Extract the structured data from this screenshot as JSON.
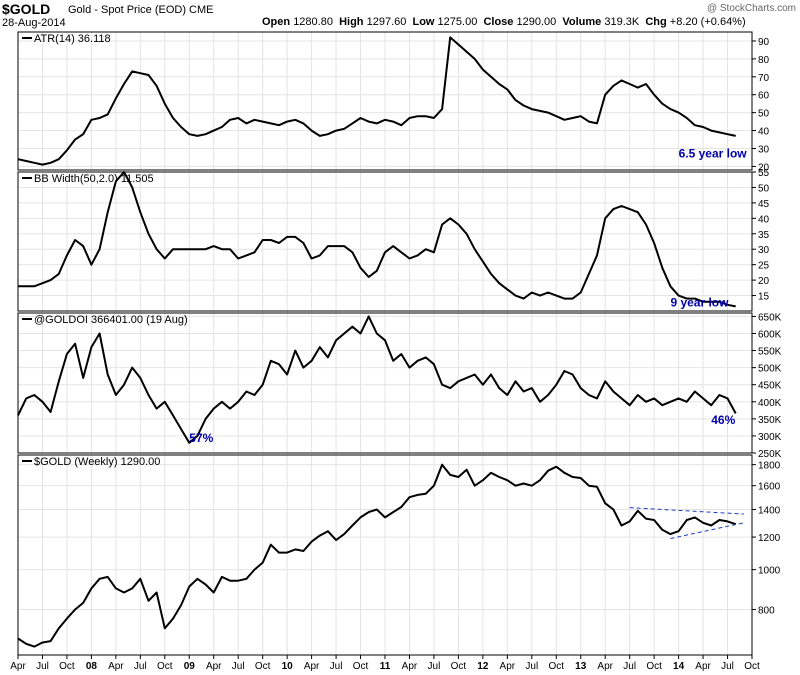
{
  "header": {
    "symbol": "$GOLD",
    "name": "Gold - Spot Price (EOD)",
    "exchange": "CME",
    "date": "28-Aug-2014",
    "open_label": "Open",
    "open": "1280.80",
    "high_label": "High",
    "high": "1297.60",
    "low_label": "Low",
    "low": "1275.00",
    "close_label": "Close",
    "close": "1290.00",
    "volume_label": "Volume",
    "volume": "319.3K",
    "chg_label": "Chg",
    "chg": "+8.20 (+0.64%)",
    "credit": "@ StockCharts.com"
  },
  "colors": {
    "line": "#000000",
    "annotation": "#0000aa",
    "trendline": "#1a3fb8",
    "grid": "#e4e4e4"
  },
  "x_axis": {
    "start": "2007-04",
    "end": "2014-10",
    "labels": [
      {
        "t": "2007-04",
        "text": "Apr",
        "bold": false
      },
      {
        "t": "2007-07",
        "text": "Jul",
        "bold": false
      },
      {
        "t": "2007-10",
        "text": "Oct",
        "bold": false
      },
      {
        "t": "2008-01",
        "text": "08",
        "bold": true
      },
      {
        "t": "2008-04",
        "text": "Apr",
        "bold": false
      },
      {
        "t": "2008-07",
        "text": "Jul",
        "bold": false
      },
      {
        "t": "2008-10",
        "text": "Oct",
        "bold": false
      },
      {
        "t": "2009-01",
        "text": "09",
        "bold": true
      },
      {
        "t": "2009-04",
        "text": "Apr",
        "bold": false
      },
      {
        "t": "2009-07",
        "text": "Jul",
        "bold": false
      },
      {
        "t": "2009-10",
        "text": "Oct",
        "bold": false
      },
      {
        "t": "2010-01",
        "text": "10",
        "bold": true
      },
      {
        "t": "2010-04",
        "text": "Apr",
        "bold": false
      },
      {
        "t": "2010-07",
        "text": "Jul",
        "bold": false
      },
      {
        "t": "2010-10",
        "text": "Oct",
        "bold": false
      },
      {
        "t": "2011-01",
        "text": "11",
        "bold": true
      },
      {
        "t": "2011-04",
        "text": "Apr",
        "bold": false
      },
      {
        "t": "2011-07",
        "text": "Jul",
        "bold": false
      },
      {
        "t": "2011-10",
        "text": "Oct",
        "bold": false
      },
      {
        "t": "2012-01",
        "text": "12",
        "bold": true
      },
      {
        "t": "2012-04",
        "text": "Apr",
        "bold": false
      },
      {
        "t": "2012-07",
        "text": "Jul",
        "bold": false
      },
      {
        "t": "2012-10",
        "text": "Oct",
        "bold": false
      },
      {
        "t": "2013-01",
        "text": "13",
        "bold": true
      },
      {
        "t": "2013-04",
        "text": "Apr",
        "bold": false
      },
      {
        "t": "2013-07",
        "text": "Jul",
        "bold": false
      },
      {
        "t": "2013-10",
        "text": "Oct",
        "bold": false
      },
      {
        "t": "2014-01",
        "text": "14",
        "bold": true
      },
      {
        "t": "2014-04",
        "text": "Apr",
        "bold": false
      },
      {
        "t": "2014-07",
        "text": "Jul",
        "bold": false
      },
      {
        "t": "2014-10",
        "text": "Oct",
        "bold": false
      }
    ]
  },
  "chart_data": [
    {
      "type": "line",
      "legend": "ATR(14) 36.118",
      "ylim": [
        18,
        95
      ],
      "yticks": [
        {
          "v": 20,
          "text": "20"
        },
        {
          "v": 30,
          "text": "30"
        },
        {
          "v": 40,
          "text": "40"
        },
        {
          "v": 50,
          "text": "50"
        },
        {
          "v": 60,
          "text": "60"
        },
        {
          "v": 70,
          "text": "70"
        },
        {
          "v": 80,
          "text": "80"
        },
        {
          "v": 90,
          "text": "90"
        }
      ],
      "x": [
        "2007-04",
        "2007-05",
        "2007-06",
        "2007-07",
        "2007-08",
        "2007-09",
        "2007-10",
        "2007-11",
        "2007-12",
        "2008-01",
        "2008-02",
        "2008-03",
        "2008-04",
        "2008-05",
        "2008-06",
        "2008-07",
        "2008-08",
        "2008-09",
        "2008-10",
        "2008-11",
        "2008-12",
        "2009-01",
        "2009-02",
        "2009-03",
        "2009-04",
        "2009-05",
        "2009-06",
        "2009-07",
        "2009-08",
        "2009-09",
        "2009-10",
        "2009-11",
        "2009-12",
        "2010-01",
        "2010-02",
        "2010-03",
        "2010-04",
        "2010-05",
        "2010-06",
        "2010-07",
        "2010-08",
        "2010-09",
        "2010-10",
        "2010-11",
        "2010-12",
        "2011-01",
        "2011-02",
        "2011-03",
        "2011-04",
        "2011-05",
        "2011-06",
        "2011-07",
        "2011-08",
        "2011-09",
        "2011-10",
        "2011-11",
        "2011-12",
        "2012-01",
        "2012-02",
        "2012-03",
        "2012-04",
        "2012-05",
        "2012-06",
        "2012-07",
        "2012-08",
        "2012-09",
        "2012-10",
        "2012-11",
        "2012-12",
        "2013-01",
        "2013-02",
        "2013-03",
        "2013-04",
        "2013-05",
        "2013-06",
        "2013-07",
        "2013-08",
        "2013-09",
        "2013-10",
        "2013-11",
        "2013-12",
        "2014-01",
        "2014-02",
        "2014-03",
        "2014-04",
        "2014-05",
        "2014-06",
        "2014-07",
        "2014-08"
      ],
      "values": [
        24,
        23,
        22,
        21,
        22,
        24,
        29,
        35,
        38,
        46,
        47,
        49,
        58,
        66,
        73,
        72,
        71,
        65,
        55,
        47,
        42,
        38,
        37,
        38,
        40,
        42,
        46,
        47,
        44,
        46,
        45,
        44,
        43,
        45,
        46,
        44,
        40,
        37,
        38,
        40,
        41,
        44,
        47,
        45,
        44,
        46,
        45,
        43,
        47,
        48,
        48,
        47,
        52,
        92,
        88,
        84,
        80,
        74,
        70,
        66,
        63,
        57,
        54,
        52,
        51,
        50,
        48,
        46,
        47,
        48,
        45,
        44,
        60,
        65,
        68,
        66,
        64,
        66,
        60,
        55,
        52,
        50,
        47,
        43,
        42,
        40,
        39,
        38,
        37
      ],
      "annotations": [
        {
          "text": "6.5 year low",
          "t": "2014-01",
          "v": 25
        }
      ]
    },
    {
      "type": "line",
      "legend": "BB Width(50,2.0) 11.505",
      "ylim": [
        10,
        55
      ],
      "yticks": [
        {
          "v": 15,
          "text": "15"
        },
        {
          "v": 20,
          "text": "20"
        },
        {
          "v": 25,
          "text": "25"
        },
        {
          "v": 30,
          "text": "30"
        },
        {
          "v": 35,
          "text": "35"
        },
        {
          "v": 40,
          "text": "40"
        },
        {
          "v": 45,
          "text": "45"
        },
        {
          "v": 50,
          "text": "50"
        },
        {
          "v": 55,
          "text": "55"
        }
      ],
      "x": [
        "2007-04",
        "2007-05",
        "2007-06",
        "2007-07",
        "2007-08",
        "2007-09",
        "2007-10",
        "2007-11",
        "2007-12",
        "2008-01",
        "2008-02",
        "2008-03",
        "2008-04",
        "2008-05",
        "2008-06",
        "2008-07",
        "2008-08",
        "2008-09",
        "2008-10",
        "2008-11",
        "2008-12",
        "2009-01",
        "2009-02",
        "2009-03",
        "2009-04",
        "2009-05",
        "2009-06",
        "2009-07",
        "2009-08",
        "2009-09",
        "2009-10",
        "2009-11",
        "2009-12",
        "2010-01",
        "2010-02",
        "2010-03",
        "2010-04",
        "2010-05",
        "2010-06",
        "2010-07",
        "2010-08",
        "2010-09",
        "2010-10",
        "2010-11",
        "2010-12",
        "2011-01",
        "2011-02",
        "2011-03",
        "2011-04",
        "2011-05",
        "2011-06",
        "2011-07",
        "2011-08",
        "2011-09",
        "2011-10",
        "2011-11",
        "2011-12",
        "2012-01",
        "2012-02",
        "2012-03",
        "2012-04",
        "2012-05",
        "2012-06",
        "2012-07",
        "2012-08",
        "2012-09",
        "2012-10",
        "2012-11",
        "2012-12",
        "2013-01",
        "2013-02",
        "2013-03",
        "2013-04",
        "2013-05",
        "2013-06",
        "2013-07",
        "2013-08",
        "2013-09",
        "2013-10",
        "2013-11",
        "2013-12",
        "2014-01",
        "2014-02",
        "2014-03",
        "2014-04",
        "2014-05",
        "2014-06",
        "2014-07",
        "2014-08"
      ],
      "values": [
        18,
        18,
        18,
        19,
        20,
        22,
        28,
        33,
        31,
        25,
        30,
        42,
        52,
        55,
        50,
        42,
        35,
        30,
        27,
        30,
        30,
        30,
        30,
        30,
        31,
        30,
        30,
        27,
        28,
        29,
        33,
        33,
        32,
        34,
        34,
        32,
        27,
        28,
        31,
        31,
        31,
        29,
        24,
        21,
        23,
        29,
        31,
        29,
        27,
        28,
        30,
        29,
        38,
        40,
        38,
        35,
        30,
        26,
        22,
        19,
        17,
        15,
        14,
        16,
        15,
        16,
        15,
        14,
        14,
        16,
        22,
        28,
        40,
        43,
        44,
        43,
        42,
        38,
        32,
        24,
        18,
        15,
        14,
        14,
        13,
        13,
        13,
        12,
        11.5
      ],
      "annotations": [
        {
          "text": "9 year low",
          "t": "2013-12",
          "v": 11.5
        }
      ]
    },
    {
      "type": "line",
      "legend": "@GOLDOI 366401.00 (19 Aug)",
      "ylim": [
        250000,
        660000
      ],
      "yticks": [
        {
          "v": 250000,
          "text": "250K"
        },
        {
          "v": 300000,
          "text": "300K"
        },
        {
          "v": 350000,
          "text": "350K"
        },
        {
          "v": 400000,
          "text": "400K"
        },
        {
          "v": 450000,
          "text": "450K"
        },
        {
          "v": 500000,
          "text": "500K"
        },
        {
          "v": 550000,
          "text": "550K"
        },
        {
          "v": 600000,
          "text": "600K"
        },
        {
          "v": 650000,
          "text": "650K"
        }
      ],
      "x": [
        "2007-04",
        "2007-05",
        "2007-06",
        "2007-07",
        "2007-08",
        "2007-09",
        "2007-10",
        "2007-11",
        "2007-12",
        "2008-01",
        "2008-02",
        "2008-03",
        "2008-04",
        "2008-05",
        "2008-06",
        "2008-07",
        "2008-08",
        "2008-09",
        "2008-10",
        "2008-11",
        "2008-12",
        "2009-01",
        "2009-02",
        "2009-03",
        "2009-04",
        "2009-05",
        "2009-06",
        "2009-07",
        "2009-08",
        "2009-09",
        "2009-10",
        "2009-11",
        "2009-12",
        "2010-01",
        "2010-02",
        "2010-03",
        "2010-04",
        "2010-05",
        "2010-06",
        "2010-07",
        "2010-08",
        "2010-09",
        "2010-10",
        "2010-11",
        "2010-12",
        "2011-01",
        "2011-02",
        "2011-03",
        "2011-04",
        "2011-05",
        "2011-06",
        "2011-07",
        "2011-08",
        "2011-09",
        "2011-10",
        "2011-11",
        "2011-12",
        "2012-01",
        "2012-02",
        "2012-03",
        "2012-04",
        "2012-05",
        "2012-06",
        "2012-07",
        "2012-08",
        "2012-09",
        "2012-10",
        "2012-11",
        "2012-12",
        "2013-01",
        "2013-02",
        "2013-03",
        "2013-04",
        "2013-05",
        "2013-06",
        "2013-07",
        "2013-08",
        "2013-09",
        "2013-10",
        "2013-11",
        "2013-12",
        "2014-01",
        "2014-02",
        "2014-03",
        "2014-04",
        "2014-05",
        "2014-06",
        "2014-07",
        "2014-08"
      ],
      "values": [
        360000,
        410000,
        420000,
        400000,
        370000,
        460000,
        540000,
        570000,
        470000,
        560000,
        600000,
        480000,
        420000,
        450000,
        500000,
        470000,
        420000,
        380000,
        400000,
        360000,
        320000,
        280000,
        300000,
        350000,
        380000,
        400000,
        380000,
        400000,
        430000,
        420000,
        450000,
        520000,
        510000,
        480000,
        550000,
        500000,
        520000,
        560000,
        530000,
        580000,
        600000,
        620000,
        600000,
        650000,
        600000,
        580000,
        520000,
        540000,
        500000,
        520000,
        530000,
        510000,
        450000,
        440000,
        460000,
        470000,
        480000,
        450000,
        480000,
        440000,
        420000,
        460000,
        430000,
        440000,
        400000,
        420000,
        450000,
        490000,
        480000,
        440000,
        420000,
        410000,
        460000,
        430000,
        410000,
        390000,
        420000,
        400000,
        410000,
        390000,
        400000,
        410000,
        400000,
        430000,
        410000,
        390000,
        420000,
        410000,
        366000
      ],
      "annotations": [
        {
          "text": "57%",
          "t": "2009-01",
          "v": 282000
        },
        {
          "text": "46%",
          "t": "2014-05",
          "v": 335000
        }
      ]
    },
    {
      "type": "line",
      "legend": "$GOLD (Weekly) 1290.00",
      "log_scale": true,
      "ylim": [
        620,
        1900
      ],
      "yticks": [
        {
          "v": 800,
          "text": "800"
        },
        {
          "v": 1000,
          "text": "1000"
        },
        {
          "v": 1200,
          "text": "1200"
        },
        {
          "v": 1400,
          "text": "1400"
        },
        {
          "v": 1600,
          "text": "1600"
        },
        {
          "v": 1800,
          "text": "1800"
        }
      ],
      "x": [
        "2007-04",
        "2007-05",
        "2007-06",
        "2007-07",
        "2007-08",
        "2007-09",
        "2007-10",
        "2007-11",
        "2007-12",
        "2008-01",
        "2008-02",
        "2008-03",
        "2008-04",
        "2008-05",
        "2008-06",
        "2008-07",
        "2008-08",
        "2008-09",
        "2008-10",
        "2008-11",
        "2008-12",
        "2009-01",
        "2009-02",
        "2009-03",
        "2009-04",
        "2009-05",
        "2009-06",
        "2009-07",
        "2009-08",
        "2009-09",
        "2009-10",
        "2009-11",
        "2009-12",
        "2010-01",
        "2010-02",
        "2010-03",
        "2010-04",
        "2010-05",
        "2010-06",
        "2010-07",
        "2010-08",
        "2010-09",
        "2010-10",
        "2010-11",
        "2010-12",
        "2011-01",
        "2011-02",
        "2011-03",
        "2011-04",
        "2011-05",
        "2011-06",
        "2011-07",
        "2011-08",
        "2011-09",
        "2011-10",
        "2011-11",
        "2011-12",
        "2012-01",
        "2012-02",
        "2012-03",
        "2012-04",
        "2012-05",
        "2012-06",
        "2012-07",
        "2012-08",
        "2012-09",
        "2012-10",
        "2012-11",
        "2012-12",
        "2013-01",
        "2013-02",
        "2013-03",
        "2013-04",
        "2013-05",
        "2013-06",
        "2013-07",
        "2013-08",
        "2013-09",
        "2013-10",
        "2013-11",
        "2013-12",
        "2014-01",
        "2014-02",
        "2014-03",
        "2014-04",
        "2014-05",
        "2014-06",
        "2014-07",
        "2014-08"
      ],
      "values": [
        680,
        660,
        650,
        665,
        670,
        720,
        760,
        800,
        830,
        900,
        950,
        960,
        900,
        880,
        900,
        950,
        840,
        880,
        720,
        760,
        820,
        910,
        950,
        920,
        880,
        960,
        940,
        940,
        950,
        1000,
        1040,
        1150,
        1100,
        1100,
        1120,
        1110,
        1170,
        1210,
        1240,
        1180,
        1220,
        1280,
        1340,
        1380,
        1400,
        1340,
        1380,
        1420,
        1500,
        1520,
        1530,
        1600,
        1800,
        1700,
        1680,
        1750,
        1600,
        1650,
        1720,
        1680,
        1650,
        1600,
        1620,
        1600,
        1650,
        1740,
        1780,
        1720,
        1680,
        1670,
        1600,
        1590,
        1450,
        1400,
        1280,
        1310,
        1390,
        1330,
        1320,
        1250,
        1220,
        1240,
        1320,
        1340,
        1300,
        1280,
        1320,
        1310,
        1290
      ],
      "trendlines": [
        {
          "from": {
            "t": "2013-07",
            "v": 1415
          },
          "to": {
            "t": "2014-09",
            "v": 1365
          }
        },
        {
          "from": {
            "t": "2013-12",
            "v": 1190
          },
          "to": {
            "t": "2014-09",
            "v": 1300
          }
        }
      ]
    }
  ]
}
